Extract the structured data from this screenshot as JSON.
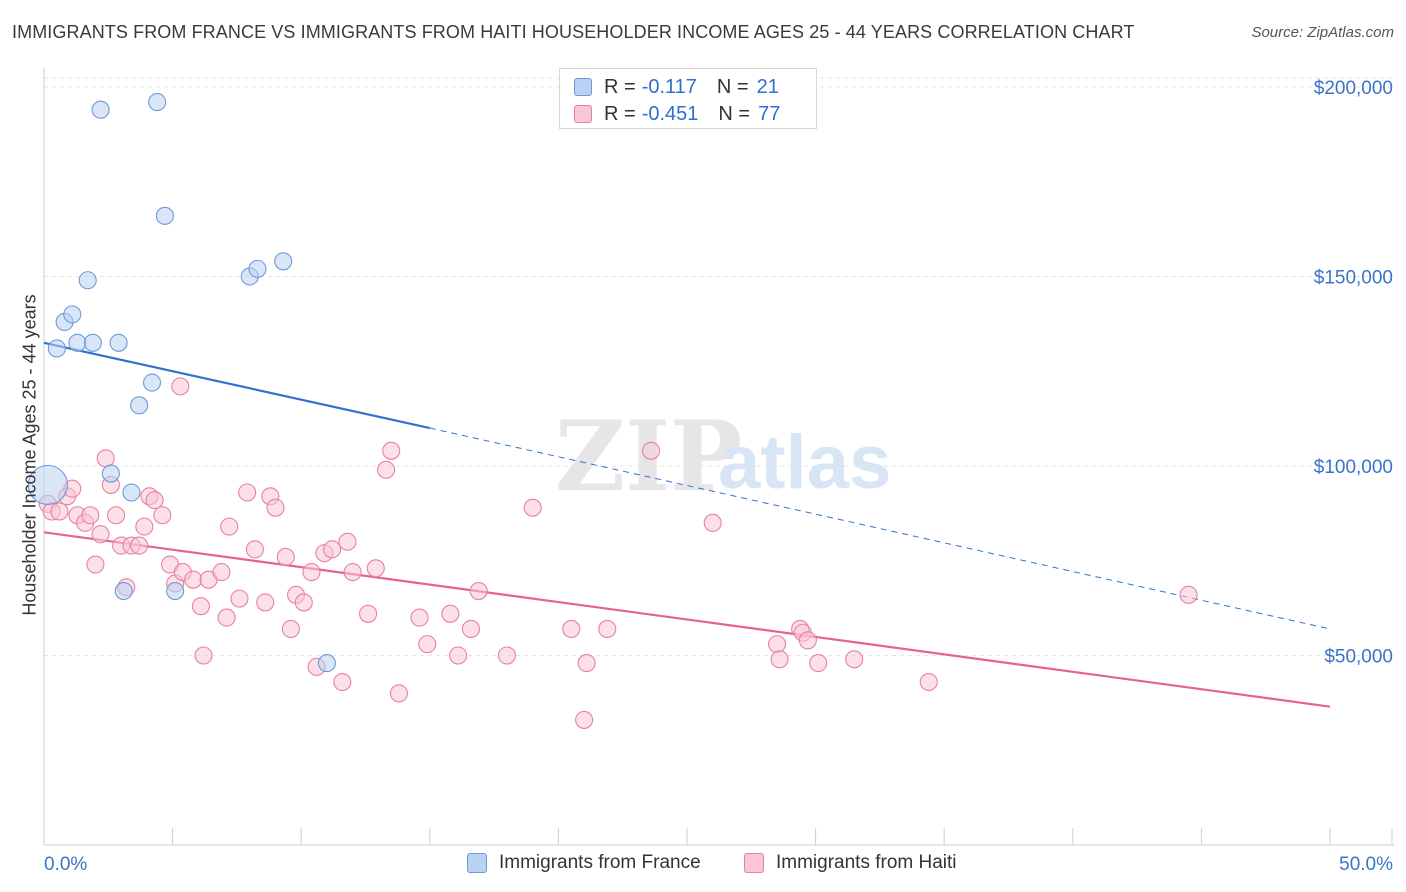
{
  "header": {
    "title": "IMMIGRANTS FROM FRANCE VS IMMIGRANTS FROM HAITI HOUSEHOLDER INCOME AGES 25 - 44 YEARS CORRELATION CHART",
    "source": "Source: ZipAtlas.com"
  },
  "legend": {
    "r_label": "R =",
    "n_label": "N =",
    "france": {
      "r": "-0.117",
      "n": "21"
    },
    "haiti": {
      "r": "-0.451",
      "n": "77"
    }
  },
  "bottom_legend": {
    "france": "Immigrants from France",
    "haiti": "Immigrants from Haiti"
  },
  "watermark": {
    "zip": "ZIP",
    "atlas": "atlas"
  },
  "colors": {
    "france_fill": "#b9d1f2",
    "france_stroke": "#6f9ad8",
    "france_line": "#2f72d0",
    "haiti_fill": "#f8c6d5",
    "haiti_stroke": "#e8819f",
    "haiti_line": "#e8628e",
    "tick_label": "#3a74c9"
  },
  "chart_data": {
    "type": "scatter",
    "title": "IMMIGRANTS FROM FRANCE VS IMMIGRANTS FROM HAITI HOUSEHOLDER INCOME AGES 25 - 44 YEARS CORRELATION CHART",
    "xlabel": "",
    "ylabel": "Householder Income Ages 25 - 44 years",
    "xlim": [
      0,
      50
    ],
    "ylim": [
      0,
      205000
    ],
    "x_tick_labels": [
      "0.0%",
      "50.0%"
    ],
    "y_ticks": [
      {
        "value": 50000,
        "label": "$50,000"
      },
      {
        "value": 100000,
        "label": "$100,000"
      },
      {
        "value": 150000,
        "label": "$150,000"
      },
      {
        "value": 200000,
        "label": "$200,000"
      }
    ],
    "series": [
      {
        "name": "Immigrants from France",
        "points": [
          [
            0.15,
            95000,
            2.3
          ],
          [
            0.5,
            131000,
            1
          ],
          [
            0.8,
            138000,
            1
          ],
          [
            1.1,
            140000,
            1
          ],
          [
            1.3,
            132500,
            1
          ],
          [
            1.7,
            149000,
            1
          ],
          [
            1.9,
            132500,
            1
          ],
          [
            2.2,
            194000,
            1
          ],
          [
            2.6,
            98000,
            1
          ],
          [
            2.9,
            132500,
            1
          ],
          [
            3.1,
            67000,
            1
          ],
          [
            3.4,
            93000,
            1
          ],
          [
            3.7,
            116000,
            1
          ],
          [
            4.2,
            122000,
            1
          ],
          [
            4.4,
            196000,
            1
          ],
          [
            4.7,
            166000,
            1
          ],
          [
            5.1,
            67000,
            1
          ],
          [
            8.0,
            150000,
            1
          ],
          [
            8.3,
            152000,
            1
          ],
          [
            9.3,
            154000,
            1
          ],
          [
            11.0,
            48000,
            1
          ]
        ],
        "trend": {
          "x0": 0,
          "y0": 132500,
          "x1": 15,
          "y1": 110000,
          "dashed_to_x": 50,
          "dashed_to_y": 57000
        }
      },
      {
        "name": "Immigrants from Haiti",
        "points": [
          [
            0.15,
            90000,
            1
          ],
          [
            0.3,
            88000,
            1
          ],
          [
            0.6,
            88000,
            1
          ],
          [
            0.9,
            92000,
            1
          ],
          [
            1.1,
            94000,
            1
          ],
          [
            1.3,
            87000,
            1
          ],
          [
            1.6,
            85000,
            1
          ],
          [
            1.8,
            87000,
            1
          ],
          [
            2.0,
            74000,
            1
          ],
          [
            2.2,
            82000,
            1
          ],
          [
            2.4,
            102000,
            1
          ],
          [
            2.6,
            95000,
            1
          ],
          [
            2.8,
            87000,
            1
          ],
          [
            3.0,
            79000,
            1
          ],
          [
            3.2,
            68000,
            1
          ],
          [
            3.4,
            79000,
            1
          ],
          [
            3.7,
            79000,
            1
          ],
          [
            3.9,
            84000,
            1
          ],
          [
            4.1,
            92000,
            1
          ],
          [
            4.3,
            91000,
            1
          ],
          [
            4.6,
            87000,
            1
          ],
          [
            4.9,
            74000,
            1
          ],
          [
            5.1,
            69000,
            1
          ],
          [
            5.4,
            72000,
            1
          ],
          [
            5.3,
            121000,
            1
          ],
          [
            5.8,
            70000,
            1
          ],
          [
            6.1,
            63000,
            1
          ],
          [
            6.2,
            50000,
            1
          ],
          [
            6.4,
            70000,
            1
          ],
          [
            6.9,
            72000,
            1
          ],
          [
            7.1,
            60000,
            1
          ],
          [
            7.2,
            84000,
            1
          ],
          [
            7.6,
            65000,
            1
          ],
          [
            7.9,
            93000,
            1
          ],
          [
            8.2,
            78000,
            1
          ],
          [
            8.6,
            64000,
            1
          ],
          [
            8.8,
            92000,
            1
          ],
          [
            9.0,
            89000,
            1
          ],
          [
            9.4,
            76000,
            1
          ],
          [
            9.6,
            57000,
            1
          ],
          [
            9.8,
            66000,
            1
          ],
          [
            10.1,
            64000,
            1
          ],
          [
            10.4,
            72000,
            1
          ],
          [
            10.6,
            47000,
            1
          ],
          [
            10.9,
            77000,
            1
          ],
          [
            11.2,
            78000,
            1
          ],
          [
            11.6,
            43000,
            1
          ],
          [
            11.8,
            80000,
            1
          ],
          [
            12.0,
            72000,
            1
          ],
          [
            12.6,
            61000,
            1
          ],
          [
            12.9,
            73000,
            1
          ],
          [
            13.3,
            99000,
            1
          ],
          [
            13.5,
            104000,
            1
          ],
          [
            13.8,
            40000,
            1
          ],
          [
            14.6,
            60000,
            1
          ],
          [
            14.9,
            53000,
            1
          ],
          [
            15.8,
            61000,
            1
          ],
          [
            16.1,
            50000,
            1
          ],
          [
            16.6,
            57000,
            1
          ],
          [
            16.9,
            67000,
            1
          ],
          [
            18.0,
            50000,
            1
          ],
          [
            19.0,
            89000,
            1
          ],
          [
            20.5,
            57000,
            1
          ],
          [
            21.0,
            33000,
            1
          ],
          [
            21.1,
            48000,
            1
          ],
          [
            21.9,
            57000,
            1
          ],
          [
            23.6,
            104000,
            1
          ],
          [
            26.0,
            85000,
            1
          ],
          [
            28.5,
            53000,
            1
          ],
          [
            28.6,
            49000,
            1
          ],
          [
            29.4,
            57000,
            1
          ],
          [
            29.5,
            56000,
            1
          ],
          [
            29.7,
            54000,
            1
          ],
          [
            30.1,
            48000,
            1
          ],
          [
            31.5,
            49000,
            1
          ],
          [
            34.4,
            43000,
            1
          ],
          [
            44.5,
            66000,
            1
          ]
        ],
        "trend": {
          "x0": 0,
          "y0": 82500,
          "x1": 50,
          "y1": 36500
        }
      }
    ]
  }
}
